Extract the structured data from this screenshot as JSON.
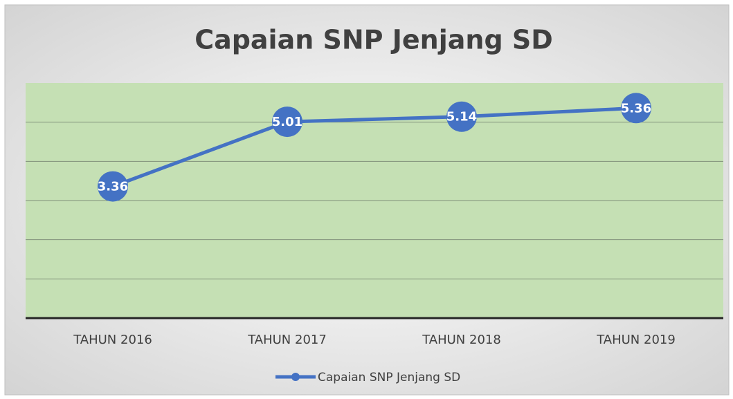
{
  "chart_data": {
    "type": "line",
    "title": "Capaian SNP Jenjang SD",
    "categories": [
      "TAHUN 2016",
      "TAHUN 2017",
      "TAHUN 2018",
      "TAHUN 2019"
    ],
    "series": [
      {
        "name": "Capaian SNP Jenjang SD",
        "color": "#4472c4",
        "values": [
          3.36,
          5.01,
          5.14,
          5.36
        ]
      }
    ],
    "ylim": [
      0,
      6
    ],
    "yticks": [
      0,
      1,
      2,
      3,
      4,
      5,
      6
    ],
    "grid": true,
    "legend": "bottom",
    "plot_color": "#c5e0b4"
  }
}
